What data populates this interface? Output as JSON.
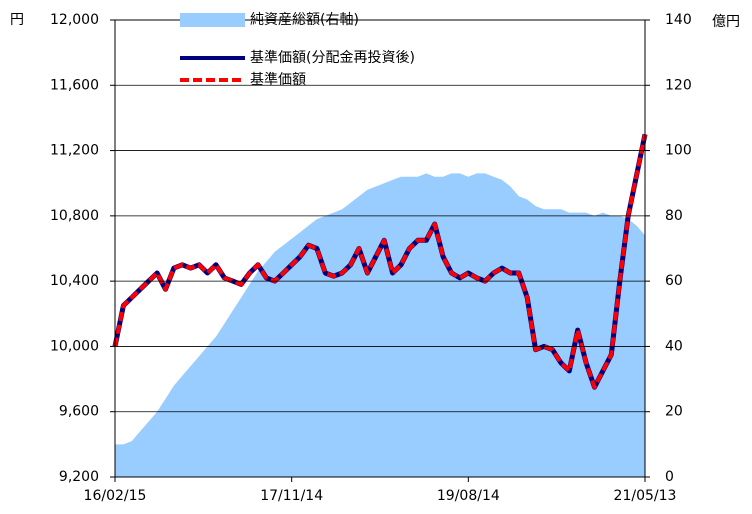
{
  "chart_data": {
    "type": "line",
    "y_label": "円",
    "y2_label": "億円",
    "categories": [
      "16/02/15",
      null,
      null,
      null,
      null,
      null,
      null,
      null,
      null,
      null,
      null,
      null,
      null,
      null,
      null,
      null,
      null,
      null,
      null,
      null,
      null,
      "17/11/14",
      null,
      null,
      null,
      null,
      null,
      null,
      null,
      null,
      null,
      null,
      null,
      null,
      null,
      null,
      null,
      null,
      null,
      null,
      null,
      null,
      "19/08/14",
      null,
      null,
      null,
      null,
      null,
      null,
      null,
      null,
      null,
      null,
      null,
      null,
      null,
      null,
      null,
      null,
      null,
      null,
      null,
      null,
      "21/05/13"
    ],
    "series": [
      {
        "name": "純資産総額(右軸)",
        "color": "#99ccff",
        "axis": "y2",
        "kind": "area",
        "values": [
          10,
          10,
          11,
          14,
          17,
          20,
          24,
          28,
          31,
          34,
          37,
          40,
          43,
          47,
          51,
          55,
          59,
          63,
          66,
          69,
          71,
          73,
          75,
          77,
          79,
          80,
          81,
          82,
          84,
          86,
          88,
          89,
          90,
          91,
          92,
          92,
          92,
          93,
          92,
          92,
          93,
          93,
          92,
          93,
          93,
          92,
          91,
          89,
          86,
          85,
          83,
          82,
          82,
          82,
          81,
          81,
          81,
          80,
          81,
          80,
          80,
          79,
          77,
          74
        ]
      },
      {
        "name": "基準価額(分配金再投資後)",
        "color": "#000080",
        "kind": "line",
        "values": [
          10000,
          10250,
          10300,
          10350,
          10400,
          10450,
          10350,
          10480,
          10500,
          10480,
          10500,
          10450,
          10500,
          10420,
          10400,
          10380,
          10450,
          10500,
          10420,
          10400,
          10450,
          10500,
          10550,
          10620,
          10600,
          10450,
          10430,
          10450,
          10500,
          10600,
          10450,
          10550,
          10650,
          10450,
          10500,
          10600,
          10650,
          10650,
          10750,
          10550,
          10450,
          10420,
          10450,
          10420,
          10400,
          10450,
          10480,
          10450,
          10450,
          10300,
          9980,
          10000,
          9980,
          9900,
          9850,
          10100,
          9900,
          9750,
          9850,
          9950,
          10400,
          10800,
          11050,
          11300
        ]
      },
      {
        "name": "基準価額",
        "color": "#ff0000",
        "kind": "dashed",
        "values": [
          10000,
          10250,
          10300,
          10350,
          10400,
          10450,
          10350,
          10480,
          10500,
          10480,
          10500,
          10450,
          10500,
          10420,
          10400,
          10380,
          10450,
          10500,
          10420,
          10400,
          10450,
          10500,
          10550,
          10620,
          10600,
          10450,
          10430,
          10450,
          10500,
          10600,
          10450,
          10550,
          10650,
          10450,
          10500,
          10600,
          10650,
          10650,
          10750,
          10550,
          10450,
          10420,
          10450,
          10420,
          10400,
          10450,
          10480,
          10450,
          10450,
          10300,
          9980,
          10000,
          9980,
          9900,
          9850,
          10100,
          9900,
          9750,
          9850,
          9950,
          10400,
          10800,
          11050,
          11300
        ]
      }
    ],
    "ylim": [
      9200,
      12000
    ],
    "yticks": [
      {
        "value": 9200,
        "label": "9,200"
      },
      {
        "value": 9600,
        "label": "9,600"
      },
      {
        "value": 10000,
        "label": "10,000"
      },
      {
        "value": 10400,
        "label": "10,400"
      },
      {
        "value": 10800,
        "label": "10,800"
      },
      {
        "value": 11200,
        "label": "11,200"
      },
      {
        "value": 11600,
        "label": "11,600"
      },
      {
        "value": 12000,
        "label": "12,000"
      }
    ],
    "y2lim": [
      0,
      140
    ],
    "y2ticks": [
      0,
      20,
      40,
      60,
      80,
      100,
      120,
      140
    ],
    "grid": true
  }
}
